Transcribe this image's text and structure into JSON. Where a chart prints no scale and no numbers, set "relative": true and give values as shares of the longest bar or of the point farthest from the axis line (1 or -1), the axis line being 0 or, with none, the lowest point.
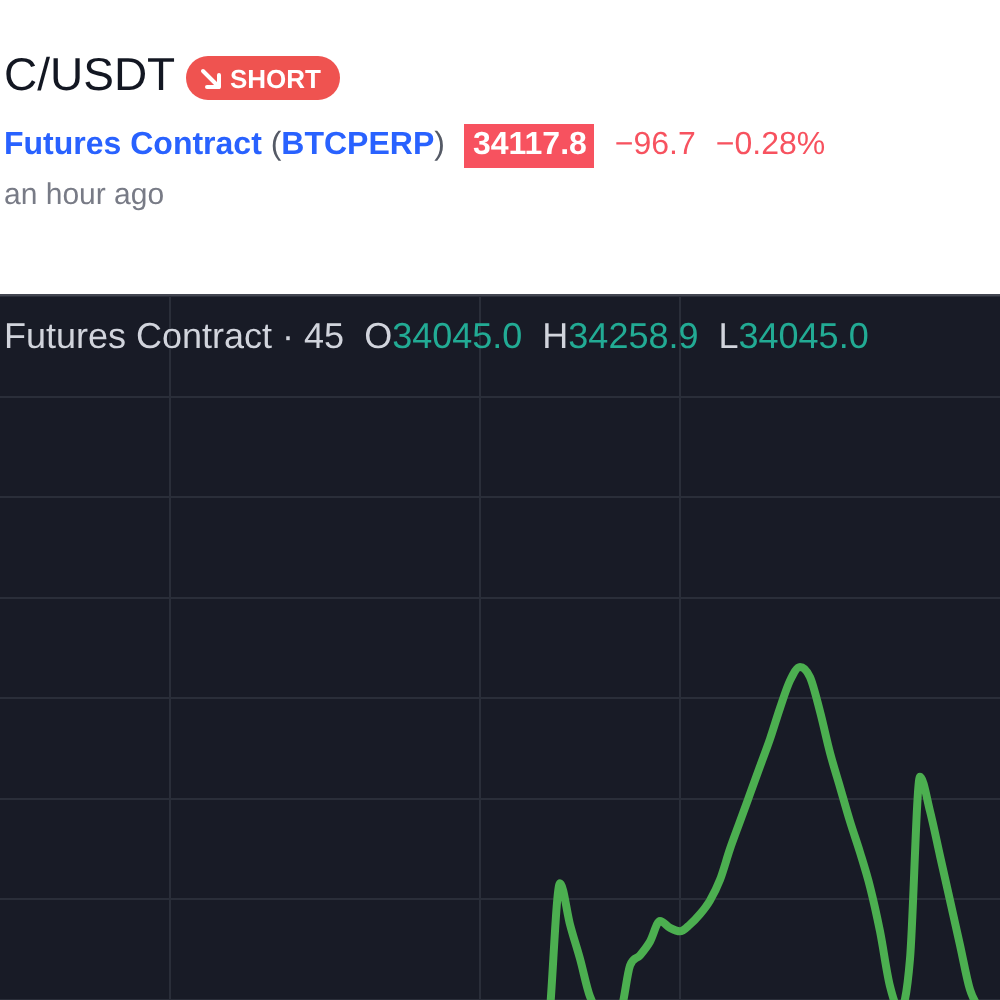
{
  "chart_data": {
    "type": "line",
    "title": "C/USDT",
    "subtitle": "Futures Contract (BTCPERP)",
    "annotations": [
      "SHORT",
      "34117.8",
      "−96.7",
      "−0.28%",
      "an hour ago",
      "Futures Contract · 45",
      "O34045.0",
      "H34258.9",
      "L34045.0"
    ],
    "categories": [
      null,
      null,
      null,
      null,
      null,
      null,
      null,
      null,
      null,
      null,
      null,
      null,
      null,
      null,
      null,
      null,
      null,
      null,
      null,
      null,
      null,
      null,
      null,
      null,
      null,
      null,
      null,
      null,
      null,
      null,
      null,
      null,
      null,
      null,
      null,
      null,
      null,
      null,
      null,
      null,
      null,
      null,
      null,
      null,
      null,
      null,
      null,
      null,
      null,
      null,
      null,
      null,
      null,
      null,
      null,
      null,
      null,
      null,
      null,
      null,
      null,
      null,
      null,
      null,
      null,
      null,
      null,
      null,
      null,
      null,
      null,
      null,
      null,
      null,
      null,
      null,
      null,
      null,
      null,
      null,
      null,
      null,
      null,
      null,
      null,
      null,
      null,
      null,
      null,
      null,
      null,
      null,
      null,
      null,
      null,
      null,
      null,
      null,
      null,
      null,
      null
    ],
    "series": [
      {
        "color": "#4caf50",
        "values": [
          null,
          null,
          null,
          null,
          null,
          null,
          null,
          null,
          null,
          null,
          null,
          null,
          null,
          null,
          null,
          null,
          null,
          null,
          null,
          null,
          null,
          null,
          null,
          null,
          null,
          null,
          null,
          null,
          null,
          null,
          null,
          null,
          null,
          null,
          null,
          null,
          null,
          null,
          null,
          null,
          null,
          null,
          null,
          null,
          null,
          null,
          null,
          null,
          null,
          null,
          null,
          null,
          null,
          null,
          null,
          0,
          0.37,
          0.25,
          0.15,
          0.04,
          0,
          null,
          0,
          0.13,
          0.16,
          0.2,
          0.26,
          0.24,
          0.23,
          0.25,
          0.28,
          0.32,
          0.38,
          0.47,
          0.55,
          0.63,
          0.71,
          0.79,
          0.88,
          0.96,
          1,
          0.97,
          0.87,
          0.75,
          0.65,
          0.55,
          0.46,
          0.36,
          0.23,
          0.07,
          0,
          0.15,
          0.68,
          0.58,
          0.45,
          0.32,
          0.19,
          0.06,
          0,
          null,
          null
        ]
      }
    ],
    "relative": true,
    "grid": true,
    "tick_labels": false,
    "marker": "none"
  }
}
